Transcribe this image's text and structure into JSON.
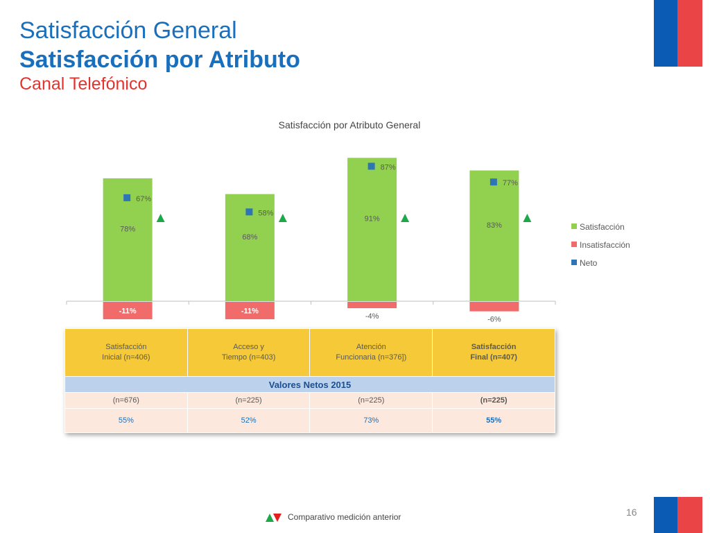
{
  "header": {
    "title1": "Satisfacción General",
    "title2": "Satisfacción por Atributo",
    "title3": "Canal Telefónico"
  },
  "colors": {
    "brand_blue": "#1a6fbd",
    "brand_red": "#e2342f",
    "satisfaccion": "#92d050",
    "insatisfaccion": "#f26b6b",
    "neto": "#2e75b6",
    "up_arrow": "#1fa84a",
    "down_arrow": "#e02020"
  },
  "chart_data": {
    "type": "bar",
    "title": "Satisfacción por Atributo General",
    "categories": [
      "",
      "",
      "",
      ""
    ],
    "series": [
      {
        "name": "Satisfacción",
        "values": [
          78,
          68,
          91,
          83
        ],
        "labels": [
          "78%",
          "68%",
          "91%",
          "83%"
        ]
      },
      {
        "name": "Insatisfacción",
        "values": [
          -11,
          -11,
          -4,
          -6
        ],
        "labels": [
          "-11%",
          "-11%",
          "-4%",
          "-6%"
        ]
      },
      {
        "name": "Neto",
        "values": [
          67,
          58,
          87,
          77
        ],
        "labels": [
          "67%",
          "58%",
          "87%",
          "77%"
        ]
      }
    ],
    "comparison_arrows": [
      "up",
      "up",
      "up",
      "up"
    ],
    "legend_position": "right",
    "ylim": [
      -11,
      91
    ],
    "grid": false
  },
  "table": {
    "headers": [
      {
        "line1": "Satisfacción",
        "line2": "Inicial (n=406)",
        "bold": false
      },
      {
        "line1": "Acceso y",
        "line2": "Tiempo (n=403)",
        "bold": false
      },
      {
        "line1": "Atención",
        "line2": "Funcionaria (n=376])",
        "bold": false
      },
      {
        "line1": "Satisfacción",
        "line2": "Final (n=407)",
        "bold": true
      }
    ],
    "subheader": "Valores Netos 2015",
    "n_values": [
      "(n=676)",
      "(n=225)",
      "(n=225)",
      "(n=225)"
    ],
    "values": [
      "55%",
      "52%",
      "73%",
      "55%"
    ]
  },
  "footer": {
    "legend_text": "Comparativo medición anterior",
    "page_number": "16"
  }
}
